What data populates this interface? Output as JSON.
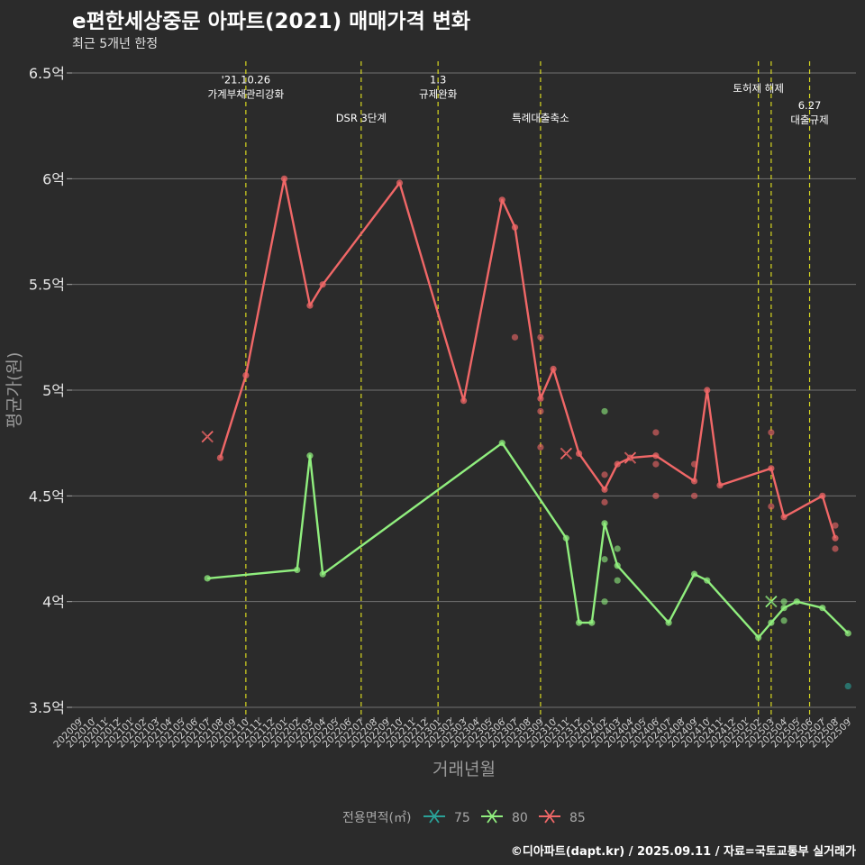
{
  "chart_data": {
    "type": "line",
    "title": "e편한세상중문 아파트(2021) 매매가격 변화",
    "subtitle": "최근 5개년 한정",
    "xlabel": "거래년월",
    "ylabel": "평균가(원)",
    "ylim": [
      3.5,
      6.5
    ],
    "y_ticks": [
      {
        "value": 3.5,
        "label": "3.5억"
      },
      {
        "value": 4.0,
        "label": "4억"
      },
      {
        "value": 4.5,
        "label": "4.5억"
      },
      {
        "value": 5.0,
        "label": "5억"
      },
      {
        "value": 5.5,
        "label": "5.5억"
      },
      {
        "value": 6.0,
        "label": "6억"
      },
      {
        "value": 6.5,
        "label": "6.5억"
      }
    ],
    "x_categories": [
      "202009",
      "202010",
      "202011",
      "202012",
      "202101",
      "202102",
      "202103",
      "202104",
      "202105",
      "202106",
      "202107",
      "202108",
      "202109",
      "202110",
      "202111",
      "202112",
      "202201",
      "202202",
      "202203",
      "202204",
      "202205",
      "202206",
      "202207",
      "202208",
      "202209",
      "202210",
      "202211",
      "202212",
      "202301",
      "202302",
      "202303",
      "202304",
      "202305",
      "202306",
      "202307",
      "202308",
      "202309",
      "202310",
      "202311",
      "202312",
      "202401",
      "202402",
      "202403",
      "202404",
      "202405",
      "202406",
      "202407",
      "202408",
      "202409",
      "202410",
      "202411",
      "202412",
      "202501",
      "202502",
      "202503",
      "202504",
      "202505",
      "202506",
      "202507",
      "202508",
      "202509"
    ],
    "events": [
      {
        "x": "202110",
        "lines": [
          "'21.10.26",
          "가계부채관리강화"
        ],
        "label_y": 6.45
      },
      {
        "x": "202207",
        "lines": [
          "DSR 3단계"
        ],
        "label_y": 6.27
      },
      {
        "x": "202301",
        "lines": [
          "1.3",
          "규제완화"
        ],
        "label_y": 6.45
      },
      {
        "x": "202309",
        "lines": [
          "특례대출축소"
        ],
        "label_y": 6.27
      },
      {
        "x": "202502",
        "lines": [
          "토허제 해제"
        ],
        "label_y": 6.41
      },
      {
        "x": "202503",
        "lines": [],
        "label_y": 6.41
      },
      {
        "x": "202506",
        "lines": [
          "6.27",
          "대출규제"
        ],
        "label_y": 6.33
      }
    ],
    "legend": {
      "title": "전용면적(㎡)",
      "position": "bottom"
    },
    "series": [
      {
        "name": "75",
        "color": "#2aa198",
        "line": [],
        "points": [
          {
            "x": "202509",
            "y": 3.6
          }
        ],
        "crosses": []
      },
      {
        "name": "80",
        "color": "#90ee7e",
        "line": [
          {
            "x": "202107",
            "y": 4.11
          },
          {
            "x": "202202",
            "y": 4.15
          },
          {
            "x": "202203",
            "y": 4.69
          },
          {
            "x": "202204",
            "y": 4.13
          },
          {
            "x": "202306",
            "y": 4.75
          },
          {
            "x": "202311",
            "y": 4.3
          },
          {
            "x": "202312",
            "y": 3.9
          },
          {
            "x": "202401",
            "y": 3.9
          },
          {
            "x": "202402",
            "y": 4.37
          },
          {
            "x": "202403",
            "y": 4.17
          },
          {
            "x": "202407",
            "y": 3.9
          },
          {
            "x": "202409",
            "y": 4.13
          },
          {
            "x": "202410",
            "y": 4.1
          },
          {
            "x": "202502",
            "y": 3.83
          },
          {
            "x": "202503",
            "y": 3.9
          },
          {
            "x": "202504",
            "y": 3.97
          },
          {
            "x": "202505",
            "y": 4.0
          },
          {
            "x": "202507",
            "y": 3.97
          },
          {
            "x": "202509",
            "y": 3.85
          }
        ],
        "points": [
          {
            "x": "202402",
            "y": 4.9
          },
          {
            "x": "202402",
            "y": 4.2
          },
          {
            "x": "202402",
            "y": 4.0
          },
          {
            "x": "202403",
            "y": 4.25
          },
          {
            "x": "202403",
            "y": 4.1
          },
          {
            "x": "202504",
            "y": 4.0
          },
          {
            "x": "202504",
            "y": 3.91
          }
        ],
        "crosses": [
          {
            "x": "202503",
            "y": 4.0
          }
        ]
      },
      {
        "name": "85",
        "color": "#f06767",
        "line": [
          {
            "x": "202108",
            "y": 4.68
          },
          {
            "x": "202110",
            "y": 5.07
          },
          {
            "x": "202201",
            "y": 6.0
          },
          {
            "x": "202203",
            "y": 5.4
          },
          {
            "x": "202204",
            "y": 5.5
          },
          {
            "x": "202210",
            "y": 5.98
          },
          {
            "x": "202303",
            "y": 4.95
          },
          {
            "x": "202306",
            "y": 5.9
          },
          {
            "x": "202307",
            "y": 5.77
          },
          {
            "x": "202309",
            "y": 4.96
          },
          {
            "x": "202310",
            "y": 5.1
          },
          {
            "x": "202312",
            "y": 4.7
          },
          {
            "x": "202402",
            "y": 4.53
          },
          {
            "x": "202403",
            "y": 4.65
          },
          {
            "x": "202404",
            "y": 4.68
          },
          {
            "x": "202406",
            "y": 4.69
          },
          {
            "x": "202409",
            "y": 4.57
          },
          {
            "x": "202410",
            "y": 5.0
          },
          {
            "x": "202411",
            "y": 4.55
          },
          {
            "x": "202503",
            "y": 4.63
          },
          {
            "x": "202504",
            "y": 4.4
          },
          {
            "x": "202507",
            "y": 4.5
          },
          {
            "x": "202508",
            "y": 4.3
          }
        ],
        "points": [
          {
            "x": "202307",
            "y": 5.25
          },
          {
            "x": "202309",
            "y": 5.25
          },
          {
            "x": "202309",
            "y": 4.9
          },
          {
            "x": "202309",
            "y": 4.73
          },
          {
            "x": "202402",
            "y": 4.6
          },
          {
            "x": "202402",
            "y": 4.47
          },
          {
            "x": "202406",
            "y": 4.8
          },
          {
            "x": "202406",
            "y": 4.65
          },
          {
            "x": "202406",
            "y": 4.5
          },
          {
            "x": "202409",
            "y": 4.65
          },
          {
            "x": "202409",
            "y": 4.5
          },
          {
            "x": "202503",
            "y": 4.8
          },
          {
            "x": "202503",
            "y": 4.45
          },
          {
            "x": "202508",
            "y": 4.36
          },
          {
            "x": "202508",
            "y": 4.25
          }
        ],
        "crosses": [
          {
            "x": "202107",
            "y": 4.78
          },
          {
            "x": "202311",
            "y": 4.7
          },
          {
            "x": "202404",
            "y": 4.68
          }
        ]
      }
    ],
    "caption": "©디아파트(dapt.kr) / 2025.09.11 / 자료=국토교통부 실거래가"
  }
}
